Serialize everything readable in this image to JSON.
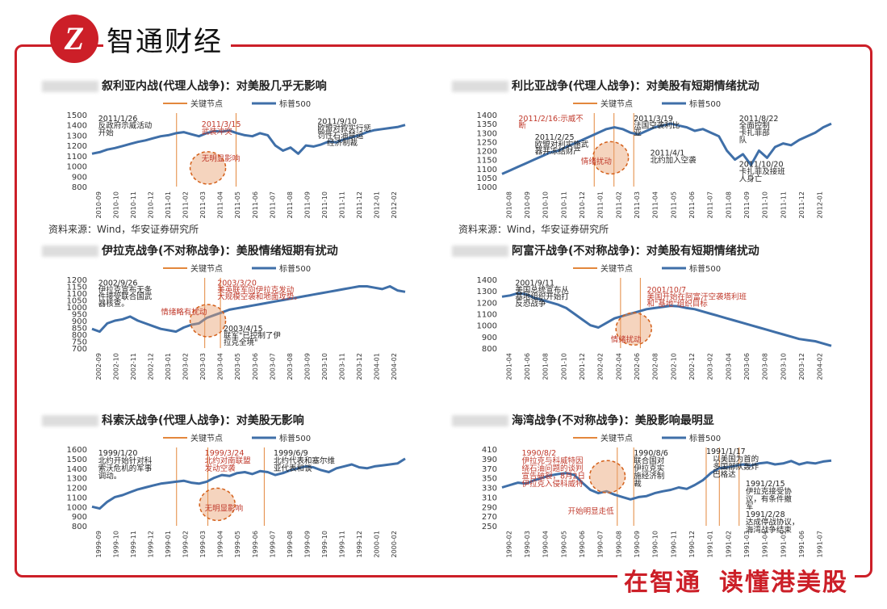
{
  "header": {
    "logo_letter": "Z",
    "brand": "智通财经"
  },
  "footer": {
    "slogan_a": "在智通",
    "slogan_b": "读懂港美股"
  },
  "colors": {
    "frame": "#cc1f28",
    "line": "#3f6fa8",
    "key": "#e3873c",
    "marker": "#d4601a",
    "note_red": "#c0392b"
  },
  "legend": {
    "key": "关键节点",
    "series": "标普500"
  },
  "source_text": "资料来源：Wind，华安证券研究所",
  "charts": [
    {
      "title": "叙利亚内战(代理人战争)：对美股几乎无影响",
      "type": "line",
      "ylim": [
        800,
        1500
      ],
      "yticks": [
        "1500",
        "1400",
        "1300",
        "1200",
        "1100",
        "1000",
        "900",
        "800"
      ],
      "xticks": [
        "2010-09",
        "2010-10",
        "2010-11",
        "2010-12",
        "2011-01",
        "2011-02",
        "2011-03",
        "2011-04",
        "2011-05",
        "2011-06",
        "2011-07",
        "2011-08",
        "2011-09",
        "2011-10",
        "2011-11",
        "2011-12",
        "2012-01",
        "2012-02"
      ],
      "values": [
        1120,
        1135,
        1160,
        1175,
        1195,
        1215,
        1235,
        1250,
        1270,
        1290,
        1300,
        1320,
        1330,
        1310,
        1290,
        1320,
        1340,
        1335,
        1345,
        1320,
        1300,
        1290,
        1320,
        1300,
        1200,
        1150,
        1180,
        1120,
        1200,
        1190,
        1210,
        1240,
        1230,
        1260,
        1280,
        1300,
        1330,
        1350,
        1360,
        1370,
        1380,
        1400
      ],
      "key_pos": [
        0.27,
        0.46
      ],
      "circle": [
        0.37,
        0.74
      ],
      "notes": [
        {
          "text": "2011/1/26",
          "x": 0.02,
          "y": 0.02,
          "red": false
        },
        {
          "text": "反政府示威活动",
          "x": 0.02,
          "y": 0.12,
          "red": false
        },
        {
          "text": "开始",
          "x": 0.02,
          "y": 0.22,
          "red": false
        },
        {
          "text": "2011/3/15",
          "x": 0.35,
          "y": 0.1,
          "red": true
        },
        {
          "text": "武装冲突",
          "x": 0.35,
          "y": 0.2,
          "red": true
        },
        {
          "text": "无明显影响",
          "x": 0.35,
          "y": 0.58,
          "red": true
        },
        {
          "text": "2011/9/10",
          "x": 0.72,
          "y": 0.06,
          "red": false
        },
        {
          "text": "欧盟对叙实行惩",
          "x": 0.72,
          "y": 0.16,
          "red": false
        },
        {
          "text": "罚性石油禁运",
          "x": 0.72,
          "y": 0.26,
          "red": false
        },
        {
          "text": "经济制裁",
          "x": 0.75,
          "y": 0.36,
          "red": false
        }
      ],
      "source": true
    },
    {
      "title": "利比亚战争(代理人战争)：对美股有短期情绪扰动",
      "type": "line",
      "ylim": [
        1000,
        1400
      ],
      "yticks": [
        "1400",
        "1350",
        "1300",
        "1250",
        "1200",
        "1150",
        "1100",
        "1050",
        "1000"
      ],
      "xticks": [
        "2010-08",
        "2010-09",
        "2010-10",
        "2010-11",
        "2010-12",
        "2011-01",
        "2011-02",
        "2011-03",
        "2011-04",
        "2011-05",
        "2011-06",
        "2011-07",
        "2011-08",
        "2011-09",
        "2011-10",
        "2011-11",
        "2011-12",
        "2012-01"
      ],
      "values": [
        1070,
        1090,
        1110,
        1130,
        1150,
        1170,
        1190,
        1200,
        1220,
        1240,
        1260,
        1280,
        1300,
        1320,
        1330,
        1320,
        1300,
        1290,
        1310,
        1330,
        1340,
        1350,
        1340,
        1330,
        1310,
        1320,
        1300,
        1280,
        1200,
        1150,
        1180,
        1120,
        1200,
        1160,
        1220,
        1240,
        1230,
        1260,
        1280,
        1300,
        1330,
        1350
      ],
      "key_pos": [
        0.28,
        0.34,
        0.4
      ],
      "circle": [
        0.33,
        0.6
      ],
      "notes": [
        {
          "text": "2011/2/16:示威不",
          "x": 0.05,
          "y": 0.02,
          "red": true
        },
        {
          "text": "断",
          "x": 0.05,
          "y": 0.12,
          "red": true
        },
        {
          "text": "2011/2/25",
          "x": 0.1,
          "y": 0.28,
          "red": false
        },
        {
          "text": "欧盟对利实施武",
          "x": 0.1,
          "y": 0.38,
          "red": false
        },
        {
          "text": "器并冻结财产",
          "x": 0.1,
          "y": 0.48,
          "red": false
        },
        {
          "text": "2011/3/19",
          "x": 0.4,
          "y": 0.02,
          "red": false
        },
        {
          "text": "法国空袭利比",
          "x": 0.4,
          "y": 0.12,
          "red": false
        },
        {
          "text": "亚",
          "x": 0.4,
          "y": 0.22,
          "red": false
        },
        {
          "text": "2011/4/1",
          "x": 0.45,
          "y": 0.5,
          "red": false
        },
        {
          "text": "北约加入空袭",
          "x": 0.45,
          "y": 0.6,
          "red": false
        },
        {
          "text": "情绪扰动",
          "x": 0.24,
          "y": 0.62,
          "red": true
        },
        {
          "text": "2011/8/22",
          "x": 0.72,
          "y": 0.02,
          "red": false
        },
        {
          "text": "全面控制",
          "x": 0.72,
          "y": 0.12,
          "red": false
        },
        {
          "text": "卡扎菲部",
          "x": 0.72,
          "y": 0.22,
          "red": false
        },
        {
          "text": "队",
          "x": 0.72,
          "y": 0.32,
          "red": false
        },
        {
          "text": "2011/10/20",
          "x": 0.72,
          "y": 0.66,
          "red": false
        },
        {
          "text": "卡扎菲及接班",
          "x": 0.72,
          "y": 0.76,
          "red": false
        },
        {
          "text": "人身亡",
          "x": 0.72,
          "y": 0.86,
          "red": false
        }
      ],
      "source": true
    },
    {
      "title": "伊拉克战争(不对称战争)：美股情绪短期有扰动",
      "type": "line",
      "ylim": [
        700,
        1200
      ],
      "yticks": [
        "1200",
        "1150",
        "1100",
        "1050",
        "1000",
        "950",
        "900",
        "850",
        "800",
        "750",
        "700"
      ],
      "xticks": [
        "2002-09",
        "2002-10",
        "2002-11",
        "2002-12",
        "2003-01",
        "2003-02",
        "2003-03",
        "2003-04",
        "2003-05",
        "2003-06",
        "2003-07",
        "2003-08",
        "2003-09",
        "2003-10",
        "2003-11",
        "2003-12",
        "2004-01",
        "2004-02"
      ],
      "values": [
        840,
        820,
        880,
        900,
        910,
        930,
        900,
        880,
        860,
        840,
        830,
        820,
        850,
        870,
        880,
        920,
        940,
        960,
        980,
        990,
        1000,
        1010,
        1020,
        1030,
        1040,
        1050,
        1060,
        1070,
        1080,
        1090,
        1100,
        1110,
        1120,
        1130,
        1140,
        1150,
        1150,
        1140,
        1130,
        1150,
        1120,
        1110
      ],
      "key_pos": [
        0.36,
        0.41
      ],
      "circle": [
        0.37,
        0.6
      ],
      "notes": [
        {
          "text": "2002/9/26",
          "x": 0.02,
          "y": 0.02,
          "red": false
        },
        {
          "text": "伊拉克宣布无条",
          "x": 0.02,
          "y": 0.12,
          "red": false
        },
        {
          "text": "件接受联合国武",
          "x": 0.02,
          "y": 0.22,
          "red": false
        },
        {
          "text": "器核查。",
          "x": 0.02,
          "y": 0.32,
          "red": false
        },
        {
          "text": "2003/3/20",
          "x": 0.4,
          "y": 0.02,
          "red": true
        },
        {
          "text": "美英联军向伊拉克发动",
          "x": 0.4,
          "y": 0.12,
          "red": true
        },
        {
          "text": "大规模空袭和地面攻势。",
          "x": 0.4,
          "y": 0.22,
          "red": true
        },
        {
          "text": "情绪略有扰动",
          "x": 0.22,
          "y": 0.44,
          "red": true
        },
        {
          "text": "2003/4/15",
          "x": 0.42,
          "y": 0.68,
          "red": false
        },
        {
          "text": "联军\"已控制了伊",
          "x": 0.42,
          "y": 0.78,
          "red": false
        },
        {
          "text": "拉克全境\"",
          "x": 0.42,
          "y": 0.88,
          "red": false
        }
      ],
      "source": false
    },
    {
      "title": "阿富汗战争(不对称战争)：对美股有短期情绪扰动",
      "type": "line",
      "ylim": [
        800,
        1400
      ],
      "yticks": [
        "1400",
        "1300",
        "1200",
        "1100",
        "1000",
        "900",
        "800"
      ],
      "xticks": [
        "2001-04",
        "2001-06",
        "2001-08",
        "2001-10",
        "2001-12",
        "2002-02",
        "2002-04",
        "2002-06",
        "2002-08",
        "2002-10",
        "2002-12",
        "2003-02",
        "2003-04",
        "2003-06",
        "2003-08",
        "2003-10",
        "2003-12",
        "2004-02"
      ],
      "values": [
        1250,
        1260,
        1280,
        1270,
        1240,
        1220,
        1200,
        1180,
        1150,
        1100,
        1050,
        1000,
        980,
        1020,
        1060,
        1080,
        1100,
        1120,
        1140,
        1150,
        1160,
        1170,
        1165,
        1150,
        1140,
        1120,
        1100,
        1080,
        1060,
        1040,
        1020,
        1000,
        980,
        960,
        940,
        920,
        900,
        880,
        870,
        860,
        840,
        820
      ],
      "key_pos": [
        0.36,
        0.42
      ],
      "circle": [
        0.4,
        0.72
      ],
      "notes": [
        {
          "text": "2001/9/11",
          "x": 0.04,
          "y": 0.02,
          "red": false
        },
        {
          "text": "美国总统宣布从",
          "x": 0.04,
          "y": 0.12,
          "red": false
        },
        {
          "text": "基地组织开始打",
          "x": 0.04,
          "y": 0.22,
          "red": false
        },
        {
          "text": "反恐战争",
          "x": 0.04,
          "y": 0.32,
          "red": false
        },
        {
          "text": "2001/10/7",
          "x": 0.44,
          "y": 0.12,
          "red": true
        },
        {
          "text": "美国开始在阿富汗空袭塔利班",
          "x": 0.44,
          "y": 0.22,
          "red": true
        },
        {
          "text": "和\"基地\"组织目标",
          "x": 0.44,
          "y": 0.32,
          "red": true
        },
        {
          "text": "情绪扰动",
          "x": 0.33,
          "y": 0.84,
          "red": true
        }
      ],
      "source": false
    },
    {
      "title": "科索沃战争(代理人战争)：对美股无影响",
      "type": "line",
      "ylim": [
        800,
        1600
      ],
      "yticks": [
        "1600",
        "1500",
        "1400",
        "1300",
        "1200",
        "1100",
        "1000",
        "900",
        "800"
      ],
      "xticks": [
        "1999-09",
        "1999-10",
        "1999-11",
        "1999-12",
        "1999-01",
        "1999-02",
        "1999-03",
        "1999-04",
        "1999-05",
        "1999-06",
        "1999-07",
        "1999-08",
        "1999-09",
        "1999-10",
        "1999-11",
        "1999-12",
        "2000-01",
        "2000-02"
      ],
      "values": [
        1000,
        980,
        1050,
        1100,
        1120,
        1150,
        1180,
        1200,
        1220,
        1240,
        1250,
        1260,
        1270,
        1250,
        1240,
        1260,
        1300,
        1330,
        1320,
        1350,
        1360,
        1340,
        1370,
        1360,
        1330,
        1350,
        1380,
        1400,
        1420,
        1410,
        1380,
        1360,
        1400,
        1420,
        1440,
        1410,
        1400,
        1420,
        1430,
        1440,
        1450,
        1500
      ],
      "key_pos": [
        0.27,
        0.37,
        0.55
      ],
      "circle": [
        0.4,
        0.72
      ],
      "notes": [
        {
          "text": "1999/1/20",
          "x": 0.02,
          "y": 0.02,
          "red": false
        },
        {
          "text": "北约开始针对科",
          "x": 0.02,
          "y": 0.12,
          "red": false
        },
        {
          "text": "索沃危机的军事",
          "x": 0.02,
          "y": 0.22,
          "red": false
        },
        {
          "text": "调动。",
          "x": 0.02,
          "y": 0.32,
          "red": false
        },
        {
          "text": "1999/3/24",
          "x": 0.36,
          "y": 0.02,
          "red": true
        },
        {
          "text": "北约对南联盟",
          "x": 0.36,
          "y": 0.12,
          "red": true
        },
        {
          "text": "发动空袭",
          "x": 0.36,
          "y": 0.22,
          "red": true
        },
        {
          "text": "1999/6/9",
          "x": 0.58,
          "y": 0.02,
          "red": false
        },
        {
          "text": "北约代表和塞尔维",
          "x": 0.58,
          "y": 0.12,
          "red": false
        },
        {
          "text": "亚代表和谈",
          "x": 0.58,
          "y": 0.22,
          "red": false
        },
        {
          "text": "无明显影响",
          "x": 0.36,
          "y": 0.74,
          "red": true
        }
      ],
      "source": false
    },
    {
      "title": "海湾战争(不对称战争)：美股影响最明显",
      "type": "line",
      "ylim": [
        250,
        410
      ],
      "yticks": [
        "410",
        "390",
        "370",
        "350",
        "330",
        "310",
        "290",
        "270",
        "250"
      ],
      "xticks": [
        "1990-02",
        "1990-03",
        "1990-04",
        "1990-05",
        "1990-06",
        "1990-07",
        "1990-08",
        "1990-09",
        "1990-10",
        "1990-11",
        "1990-12",
        "1991-01",
        "1991-02",
        "1991-03",
        "1991-04",
        "1991-05",
        "1991-06",
        "1991-07"
      ],
      "values": [
        330,
        335,
        340,
        338,
        345,
        350,
        355,
        358,
        360,
        356,
        340,
        325,
        318,
        322,
        315,
        310,
        305,
        310,
        312,
        318,
        322,
        325,
        330,
        327,
        335,
        345,
        360,
        370,
        372,
        375,
        378,
        376,
        380,
        382,
        378,
        380,
        385,
        378,
        382,
        380,
        384,
        386
      ],
      "key_pos": [
        0.35,
        0.4,
        0.62,
        0.66,
        0.72
      ],
      "circle": [
        0.32,
        0.36
      ],
      "notes": [
        {
          "text": "1990/8/2",
          "x": 0.06,
          "y": 0.02,
          "red": true
        },
        {
          "text": "伊拉克与科威特因",
          "x": 0.06,
          "y": 0.12,
          "red": true
        },
        {
          "text": "绕石油问题的谈判",
          "x": 0.06,
          "y": 0.22,
          "red": true
        },
        {
          "text": "宣告破裂，8月2日",
          "x": 0.06,
          "y": 0.32,
          "red": true
        },
        {
          "text": "伊拉克入侵科威特",
          "x": 0.06,
          "y": 0.42,
          "red": true
        },
        {
          "text": "1990/8/6",
          "x": 0.4,
          "y": 0.02,
          "red": false
        },
        {
          "text": "联合国对",
          "x": 0.4,
          "y": 0.12,
          "red": false
        },
        {
          "text": "伊拉克实",
          "x": 0.4,
          "y": 0.22,
          "red": false
        },
        {
          "text": "施经济制",
          "x": 0.4,
          "y": 0.32,
          "red": false
        },
        {
          "text": "裁",
          "x": 0.4,
          "y": 0.42,
          "red": false
        },
        {
          "text": "开始明显走低",
          "x": 0.2,
          "y": 0.78,
          "red": true
        },
        {
          "text": "1991/1/17",
          "x": 0.62,
          "y": 0.0,
          "red": false
        },
        {
          "text": "以美国为首的",
          "x": 0.64,
          "y": 0.1,
          "red": false
        },
        {
          "text": "多国部队轰炸",
          "x": 0.64,
          "y": 0.2,
          "red": false
        },
        {
          "text": "巴格达",
          "x": 0.64,
          "y": 0.3,
          "red": false
        },
        {
          "text": "1991/2/15",
          "x": 0.74,
          "y": 0.42,
          "red": false
        },
        {
          "text": "伊拉克接受协",
          "x": 0.74,
          "y": 0.52,
          "red": false
        },
        {
          "text": "议，有条件撤",
          "x": 0.74,
          "y": 0.62,
          "red": false
        },
        {
          "text": "军",
          "x": 0.74,
          "y": 0.72,
          "red": false
        },
        {
          "text": "1991/2/28",
          "x": 0.74,
          "y": 0.82,
          "red": false
        },
        {
          "text": "达成停战协议，",
          "x": 0.74,
          "y": 0.92,
          "red": false
        },
        {
          "text": "海湾战争结束",
          "x": 0.74,
          "y": 1.02,
          "red": false
        }
      ],
      "source": false
    }
  ]
}
